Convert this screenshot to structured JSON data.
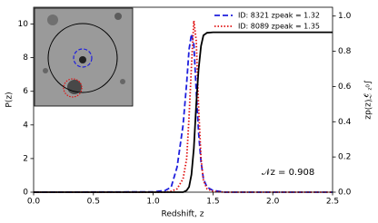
{
  "chart_data": {
    "type": "line",
    "xlabel": "Redshift, z",
    "ylabel": "P(z)",
    "y2label": "∫₀ᶻ 𝒵(z)dz",
    "annotation": "𝒩z =  0.908",
    "x": [
      0,
      1.0,
      1.1,
      1.15,
      1.2,
      1.25,
      1.28,
      1.3,
      1.32,
      1.34,
      1.36,
      1.38,
      1.4,
      1.42,
      1.45,
      1.5,
      1.6,
      2.5
    ],
    "series": [
      {
        "name": "ID: 8321 zpeak = 1.32",
        "color": "#1f1fdd",
        "dash": "6 3",
        "values": [
          0,
          0.02,
          0.1,
          0.3,
          1.5,
          4.0,
          6.5,
          8.5,
          9.4,
          8.8,
          6.0,
          3.5,
          1.8,
          0.8,
          0.3,
          0.1,
          0,
          0
        ]
      },
      {
        "name": "ID: 8089 zpeak = 1.35",
        "color": "#e01010",
        "dash": "1.5 2",
        "values": [
          0,
          0,
          0,
          0.05,
          0.2,
          0.8,
          2.0,
          4.5,
          7.5,
          10.2,
          9.0,
          5.0,
          2.0,
          0.7,
          0.2,
          0.05,
          0,
          0
        ]
      },
      {
        "color": "#000000",
        "axis": "y2",
        "values": [
          0,
          0,
          0,
          0,
          0,
          0,
          0.01,
          0.03,
          0.1,
          0.25,
          0.5,
          0.7,
          0.83,
          0.89,
          0.905,
          0.908,
          0.908,
          0.908
        ]
      }
    ],
    "xlim": [
      0,
      2.5
    ],
    "xticks": [
      {
        "value": 0,
        "label": "0.0"
      },
      0.5,
      {
        "value": 1,
        "label": "1.0"
      },
      1.5,
      {
        "value": 2,
        "label": "2.0"
      },
      2.5
    ],
    "ylim": [
      0,
      11
    ],
    "yticks": [
      0,
      2,
      4,
      6,
      8,
      10
    ],
    "y2lim": [
      0,
      1.05
    ],
    "y2ticks": [
      {
        "value": 0,
        "label": "0.0"
      },
      0.2,
      0.4,
      0.6,
      0.8,
      {
        "value": 1,
        "label": "1.0"
      }
    ],
    "legend": "upper right"
  }
}
